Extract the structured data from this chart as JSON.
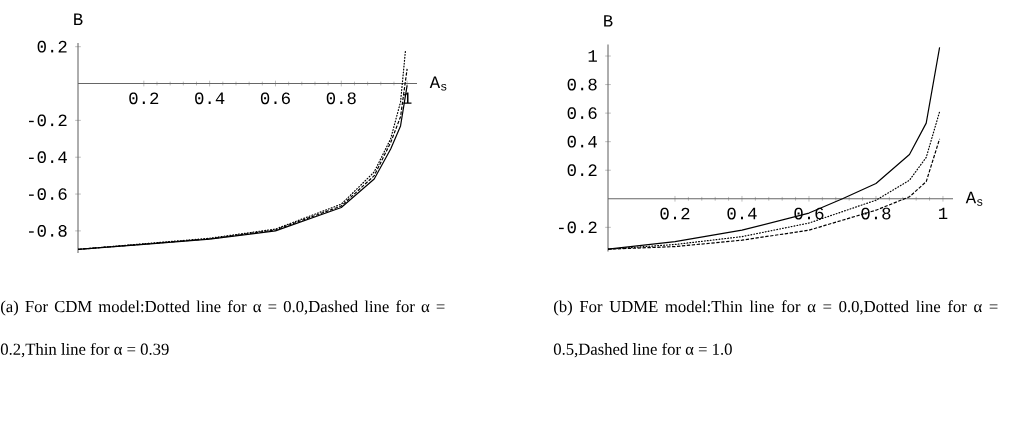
{
  "chart_data": [
    {
      "type": "line",
      "xlabel": "A$_{s}$",
      "ylabel": "B",
      "xlim": [
        0,
        1.03
      ],
      "ylim": [
        -0.92,
        0.22
      ],
      "xticks": [
        0.2,
        0.4,
        0.6,
        0.8,
        1
      ],
      "yticks": [
        -0.8,
        -0.6,
        -0.4,
        -0.2,
        0.2
      ],
      "series": [
        {
          "color": "#000000",
          "line_style": "dotted",
          "x": [
            0,
            0.2,
            0.4,
            0.6,
            0.8,
            0.9,
            0.95,
            0.98,
            0.995
          ],
          "values": [
            -0.9,
            -0.87,
            -0.84,
            -0.79,
            -0.655,
            -0.48,
            -0.3,
            -0.1,
            0.18
          ]
        },
        {
          "color": "#000000",
          "line_style": "dashed",
          "x": [
            0,
            0.2,
            0.4,
            0.6,
            0.8,
            0.9,
            0.95,
            0.98,
            1.0
          ],
          "values": [
            -0.9,
            -0.872,
            -0.843,
            -0.795,
            -0.665,
            -0.5,
            -0.32,
            -0.18,
            0.08
          ]
        },
        {
          "color": "#000000",
          "line_style": "solid",
          "x": [
            0,
            0.2,
            0.4,
            0.6,
            0.8,
            0.9,
            0.95,
            0.98,
            1.0
          ],
          "values": [
            -0.9,
            -0.873,
            -0.845,
            -0.8,
            -0.673,
            -0.518,
            -0.355,
            -0.23,
            -0.01
          ]
        }
      ],
      "annotations": [
        "(a) For CDM model:Dotted line for α = 0.0,Dashed line for α = 0.2,Thin line for α = 0.39"
      ]
    },
    {
      "type": "line",
      "xlabel": "A$_{s}$",
      "ylabel": "B",
      "xlim": [
        0,
        1.03
      ],
      "ylim": [
        -0.37,
        1.08
      ],
      "xticks": [
        0.2,
        0.4,
        0.6,
        0.8,
        1
      ],
      "yticks": [
        -0.2,
        0.2,
        0.4,
        0.6,
        0.8,
        1
      ],
      "series": [
        {
          "color": "#000000",
          "line_style": "solid",
          "x": [
            0,
            0.2,
            0.4,
            0.6,
            0.7,
            0.8,
            0.9,
            0.95,
            0.99
          ],
          "values": [
            -0.353,
            -0.3,
            -0.22,
            -0.1,
            0.0,
            0.107,
            0.31,
            0.53,
            1.06
          ]
        },
        {
          "color": "#000000",
          "line_style": "dotted",
          "x": [
            0,
            0.2,
            0.4,
            0.6,
            0.8,
            0.9,
            0.95,
            0.99
          ],
          "values": [
            -0.353,
            -0.32,
            -0.265,
            -0.17,
            -0.01,
            0.13,
            0.29,
            0.61
          ]
        },
        {
          "color": "#000000",
          "line_style": "dashed",
          "x": [
            0,
            0.2,
            0.4,
            0.6,
            0.8,
            0.9,
            0.95,
            0.99
          ],
          "values": [
            -0.353,
            -0.335,
            -0.29,
            -0.22,
            -0.08,
            0.014,
            0.12,
            0.42
          ]
        }
      ],
      "annotations": [
        "(b) For UDME model:Thin line for α = 0.0,Dotted line for α = 0.5,Dashed line for α = 1.0"
      ]
    }
  ]
}
